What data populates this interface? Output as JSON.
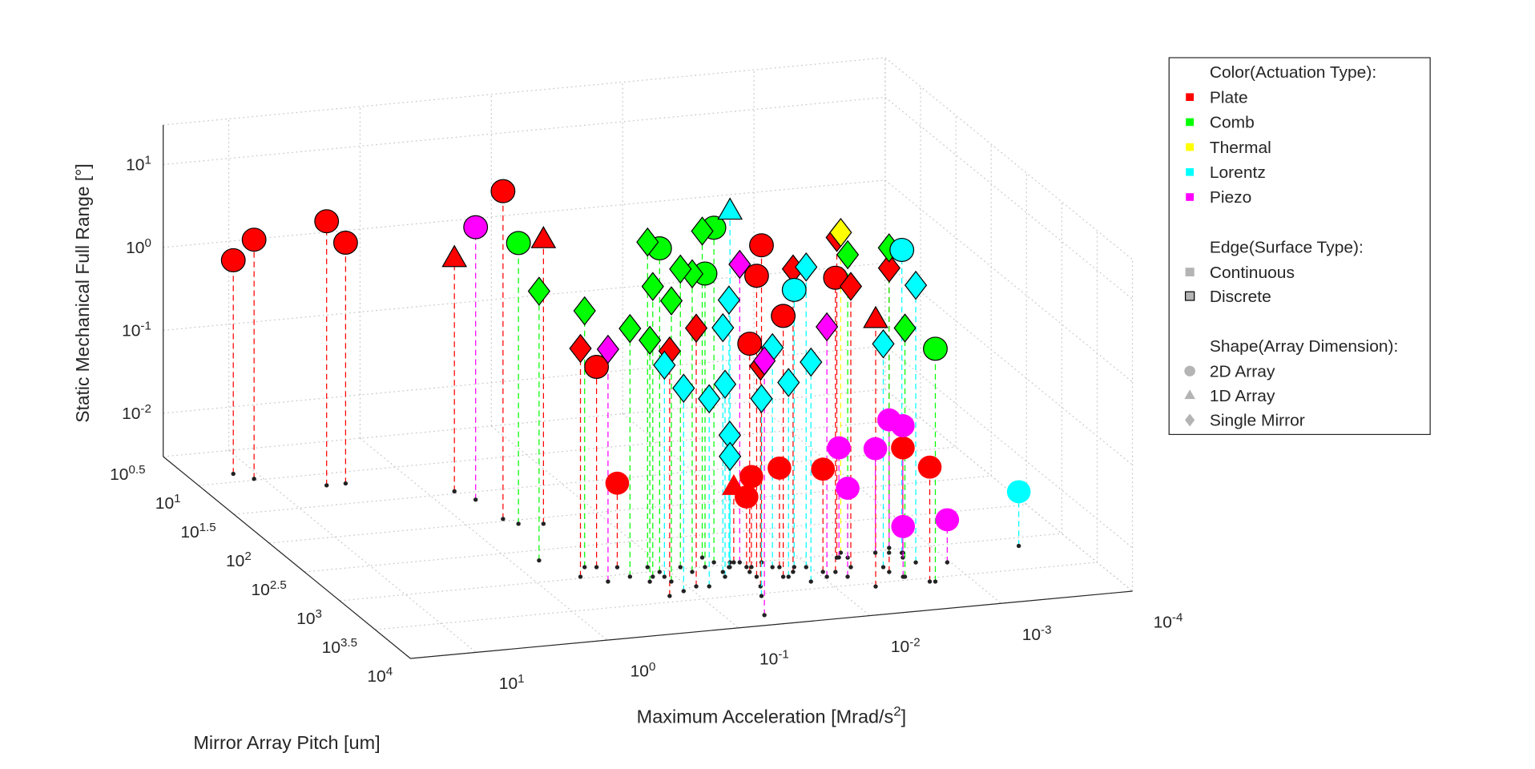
{
  "chart_data": {
    "type": "scatter3",
    "xlabel": "Maximum Acceleration [Mrad/s^{2}]",
    "ylabel": "Mirror Array Pitch [um]",
    "zlabel": "Static Mechanical Full Range [°]",
    "xscale": "log",
    "yscale": "log",
    "zscale": "log",
    "xdir": "reverse",
    "xlim": [
      0.0001,
      31.6
    ],
    "ylim": [
      3.1623,
      10000
    ],
    "zlim": [
      0.003,
      30
    ],
    "xticks": [
      {
        "value": 0.0001,
        "label": "10^{-4}"
      },
      {
        "value": 0.001,
        "label": "10^{-3}"
      },
      {
        "value": 0.01,
        "label": "10^{-2}"
      },
      {
        "value": 0.1,
        "label": "10^{-1}"
      },
      {
        "value": 1,
        "label": "10^{0}"
      },
      {
        "value": 10,
        "label": "10^{1}"
      }
    ],
    "yticks": [
      {
        "value": 3.1623,
        "label": "10^{0.5}"
      },
      {
        "value": 10,
        "label": "10^{1}"
      },
      {
        "value": 31.623,
        "label": "10^{1.5}"
      },
      {
        "value": 100,
        "label": "10^{2}"
      },
      {
        "value": 316.23,
        "label": "10^{2.5}"
      },
      {
        "value": 1000,
        "label": "10^{3}"
      },
      {
        "value": 3162.3,
        "label": "10^{3.5}"
      },
      {
        "value": 10000,
        "label": "10^{4}"
      }
    ],
    "zticks": [
      {
        "value": 0.01,
        "label": "10^{-2}"
      },
      {
        "value": 0.1,
        "label": "10^{-1}"
      },
      {
        "value": 1,
        "label": "10^{0}"
      },
      {
        "value": 10,
        "label": "10^{1}"
      }
    ],
    "grid": true,
    "stems": true,
    "legend": {
      "position": "outside-right",
      "color_title": "Color(Actuation Type):",
      "edge_title": "Edge(Surface Type):",
      "edge_entries": [
        {
          "name": "Continuous",
          "edge": "none"
        },
        {
          "name": "Discrete",
          "edge": "k"
        }
      ],
      "shape_title": "Shape(Array Dimension):",
      "shape_entries": [
        {
          "name": "2D Array",
          "marker": "o"
        },
        {
          "name": "1D Array",
          "marker": "^"
        },
        {
          "name": "Single Mirror",
          "marker": "d"
        }
      ]
    },
    "series": [
      {
        "name": "Plate",
        "color": "#ff0000",
        "x": [
          14.6,
          11.6,
          4.2,
          3.0,
          0.5,
          0.29,
          0.0197,
          0.0281,
          0.0185,
          0.0286,
          0.0074,
          0.21,
          0.0253,
          0.0163,
          0.009,
          0.0273,
          0.00194,
          0.00202,
          0.63,
          0.29,
          0.0052,
          0.0305,
          0.45,
          0.16,
          0.0875,
          0.0144,
          0.0053,
          0.00318,
          0.0055,
          0.0318
        ],
        "y": [
          7.4,
          9.5,
          15.3,
          15.2,
          92,
          705,
          1030,
          1700,
          1860,
          1400,
          1860,
          760,
          1180,
          1300,
          1780,
          1160,
          1390,
          3600,
          29,
          125,
          3580,
          940,
          944,
          2530,
          1960,
          1610,
          1650,
          2230,
          1120,
          2430
        ],
        "z": [
          1.13,
          2.3,
          4.6,
          2.4,
          27,
          0.78,
          20,
          12.8,
          4.2,
          1.7,
          10.6,
          0.031,
          0.037,
          0.047,
          0.052,
          0.021,
          0.063,
          0.072,
          1.9,
          7.9,
          4.9,
          0.024,
          1.7,
          2.7,
          3.9,
          13.5,
          7.3,
          13.9,
          21.8,
          1.36
        ],
        "marker": [
          "o",
          "o",
          "o",
          "o",
          "o",
          "o",
          "o",
          "o",
          "o",
          "o",
          "o",
          "o",
          "o",
          "o",
          "o",
          "o",
          "o",
          "o",
          "^",
          "^",
          "^",
          "^",
          "d",
          "d",
          "d",
          "d",
          "d",
          "d",
          "d",
          "d"
        ],
        "edge": [
          "k",
          "k",
          "k",
          "k",
          "k",
          "k",
          "k",
          "k",
          "k",
          "k",
          "k",
          "none",
          "none",
          "none",
          "none",
          "none",
          "none",
          "none",
          "k",
          "k",
          "k",
          "none",
          "k",
          "k",
          "k",
          "k",
          "k",
          "k",
          "k",
          "k"
        ]
      },
      {
        "name": "Comb",
        "color": "#00ff00",
        "x": [
          0.43,
          0.00185,
          0.118,
          0.0525,
          0.0417,
          0.63,
          0.35,
          0.206,
          0.166,
          0.118,
          0.13,
          0.144,
          0.0705,
          0.0457,
          0.00272,
          0.00463,
          0.0022,
          0.0775
        ],
        "y": [
          115,
          3670,
          1035,
          1010,
          880,
          458,
          678,
          1110,
          1420,
          1520,
          837,
          1200,
          1150,
          713,
          2790,
          1160,
          1120,
          933
        ],
        "z": [
          7.3,
          1.93,
          24,
          10.4,
          32.6,
          5.3,
          3.7,
          2.95,
          2.45,
          7.3,
          25,
          9.5,
          11.8,
          26,
          3.0,
          13.5,
          14.3,
          11.8
        ],
        "marker": [
          "o",
          "o",
          "o",
          "o",
          "o",
          "d",
          "d",
          "d",
          "d",
          "d",
          "d",
          "d",
          "d",
          "d",
          "d",
          "d",
          "d",
          "d"
        ],
        "edge": [
          "k",
          "k",
          "k",
          "k",
          "k",
          "k",
          "k",
          "k",
          "k",
          "k",
          "k",
          "k",
          "k",
          "k",
          "k",
          "k",
          "k",
          "k"
        ]
      },
      {
        "name": "Thermal",
        "color": "#ffff00",
        "x": [
          0.0047
        ],
        "y": [
          950
        ],
        "z": [
          21.8
        ],
        "marker": [
          "d"
        ],
        "edge": [
          "k"
        ]
      },
      {
        "name": "Lorentz",
        "color": "#00ffff",
        "x": [
          0.0018,
          0.0129,
          0.00025,
          0.0324,
          0.117,
          0.0714,
          0.0462,
          0.0377,
          0.017,
          0.0131,
          0.0182,
          0.0436,
          0.0356,
          0.0324,
          0.00318,
          0.00174,
          0.0107,
          0.12,
          0.0361
        ],
        "y": [
          1170,
          1360,
          1350,
          930,
          2230,
          2050,
          1530,
          3440,
          1890,
          2420,
          1270,
          1280,
          1100,
          930,
          1840,
          1730,
          1420,
          1250,
          1100
        ],
        "z": [
          13.5,
          6.6,
          0.0135,
          51,
          0.84,
          0.55,
          0.63,
          0.72,
          0.66,
          1.33,
          1.33,
          2.65,
          0.117,
          0.057,
          1.48,
          6.6,
          12.5,
          1.07,
          5.0
        ],
        "marker": [
          "o",
          "o",
          "o",
          "^",
          "d",
          "d",
          "d",
          "d",
          "d",
          "d",
          "d",
          "d",
          "d",
          "d",
          "d",
          "d",
          "d",
          "d",
          "d"
        ],
        "edge": [
          "k",
          "k",
          "none",
          "k",
          "k",
          "k",
          "k",
          "k",
          "k",
          "k",
          "k",
          "k",
          "k",
          "k",
          "k",
          "k",
          "k",
          "k",
          "k"
        ]
      },
      {
        "name": "Piezo",
        "color": "#ff00ff",
        "x": [
          0.53,
          0.32,
          0.0278,
          0.0521,
          0.0093,
          0.0053,
          0.0067,
          0.00273,
          0.002,
          0.00177,
          0.0028,
          0.00106
        ],
        "y": [
          42,
          1230,
          960,
          6900,
          2150,
          1120,
          2300,
          1070,
          940,
          1170,
          2770,
          1920
        ],
        "z": [
          5.8,
          1.9,
          11.8,
          3.5,
          3.1,
          0.063,
          0.035,
          0.054,
          0.105,
          0.102,
          0.0121,
          0.0098
        ],
        "marker": [
          "o",
          "d",
          "d",
          "d",
          "d",
          "o",
          "o",
          "o",
          "o",
          "o",
          "o",
          "o"
        ],
        "edge": [
          "k",
          "k",
          "k",
          "k",
          "k",
          "none",
          "none",
          "none",
          "none",
          "none",
          "none",
          "none"
        ]
      }
    ]
  }
}
